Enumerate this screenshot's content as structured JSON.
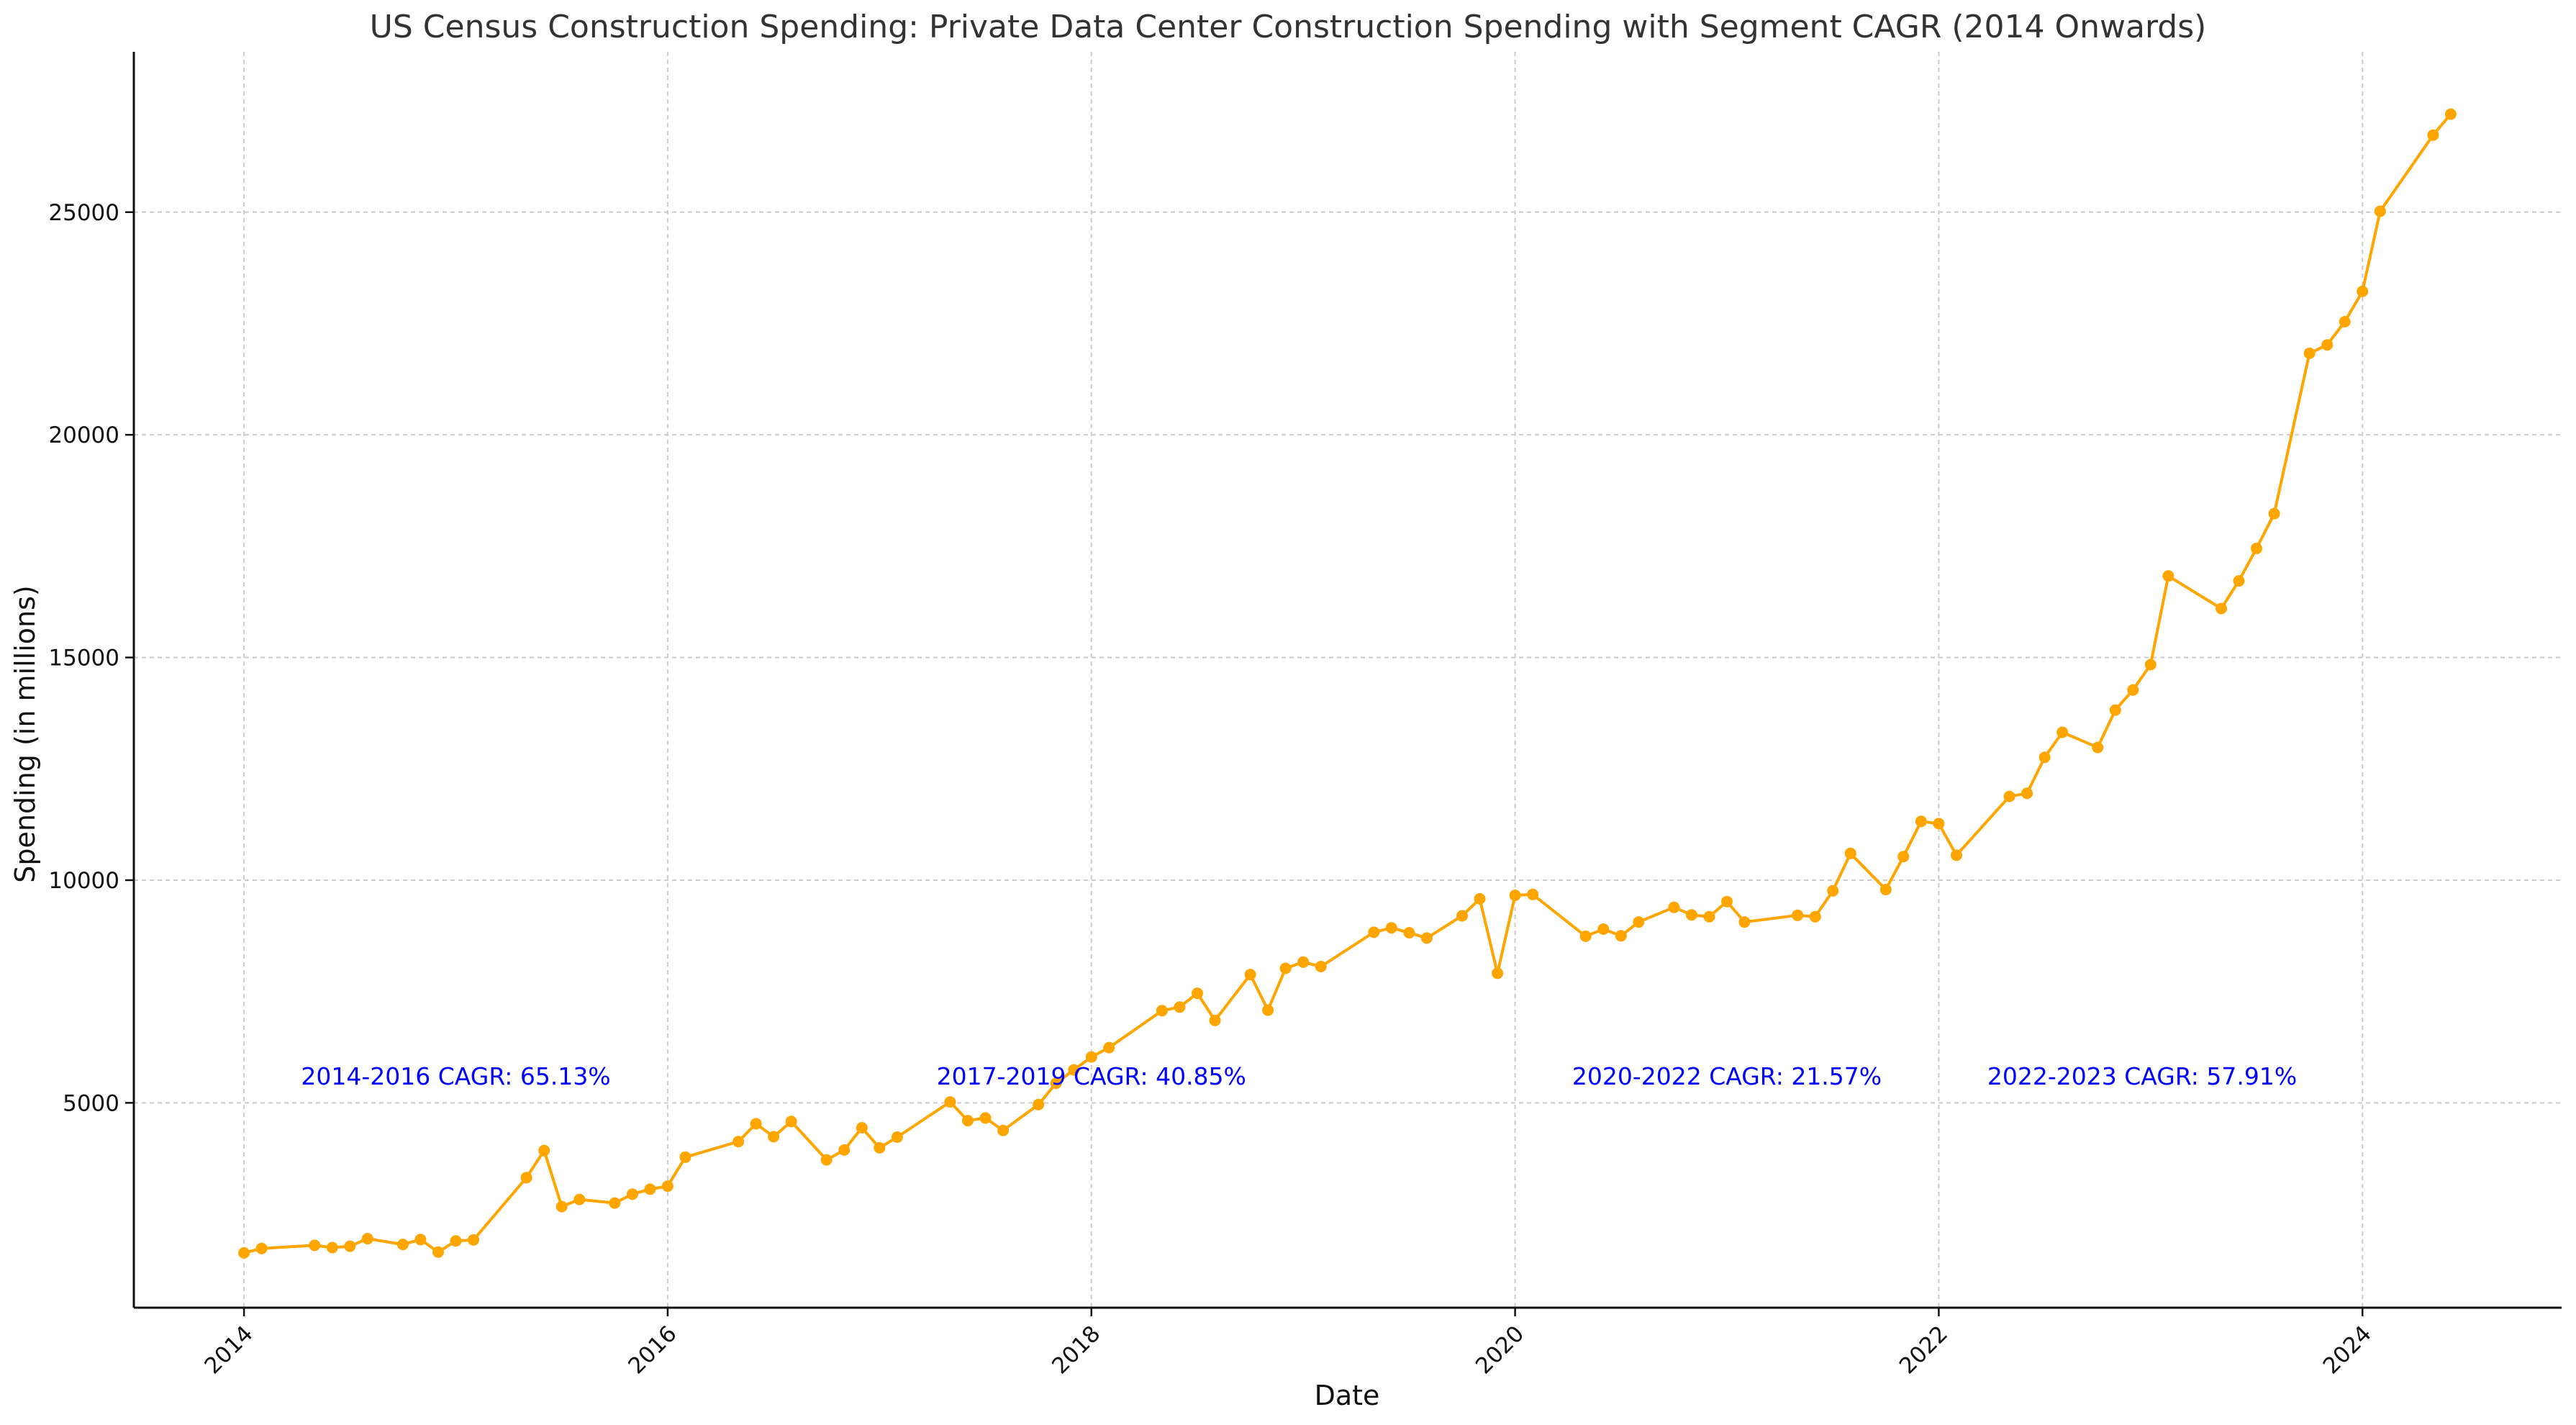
{
  "chart_data": {
    "type": "line",
    "title": "US Census Construction Spending: Private Data Center Construction Spending with Segment CAGR (2014 Onwards)",
    "xlabel": "Date",
    "ylabel": "Spending (in millions)",
    "x_ticks": [
      "2014",
      "2016",
      "2018",
      "2020",
      "2022",
      "2024"
    ],
    "y_ticks": [
      "5000",
      "10000",
      "15000",
      "20000",
      "25000"
    ],
    "xlim": [
      2013.48,
      2024.94
    ],
    "ylim": [
      400,
      28600
    ],
    "grid": true,
    "line_color": "#ffa500",
    "annotation_color": "#0000ff",
    "annotations": [
      {
        "text": "2014-2016 CAGR: 65.13%",
        "x": 2015.0,
        "y": 5600
      },
      {
        "text": "2017-2019 CAGR: 40.85%",
        "x": 2018.0,
        "y": 5600
      },
      {
        "text": "2020-2022 CAGR: 21.57%",
        "x": 2021.0,
        "y": 5600
      },
      {
        "text": "2022-2023 CAGR: 57.91%",
        "x": 2022.96,
        "y": 5600
      }
    ],
    "series": [
      {
        "x": [
          "2014-01",
          "2014-02",
          "2014-05",
          "2014-06",
          "2014-07",
          "2014-08",
          "2014-10",
          "2014-11",
          "2014-12",
          "2015-01",
          "2015-02",
          "2015-05",
          "2015-06",
          "2015-07",
          "2015-08",
          "2015-10",
          "2015-11",
          "2015-12",
          "2016-01",
          "2016-02",
          "2016-05",
          "2016-06",
          "2016-07",
          "2016-08",
          "2016-10",
          "2016-11",
          "2016-12",
          "2017-01",
          "2017-02",
          "2017-05",
          "2017-06",
          "2017-07",
          "2017-08",
          "2017-10",
          "2017-11",
          "2017-12",
          "2018-01",
          "2018-02",
          "2018-05",
          "2018-06",
          "2018-07",
          "2018-08",
          "2018-10",
          "2018-11",
          "2018-12",
          "2019-01",
          "2019-02",
          "2019-05",
          "2019-06",
          "2019-07",
          "2019-08",
          "2019-10",
          "2019-11",
          "2019-12",
          "2020-01",
          "2020-02",
          "2020-05",
          "2020-06",
          "2020-07",
          "2020-08",
          "2020-10",
          "2020-11",
          "2020-12",
          "2021-01",
          "2021-02",
          "2021-05",
          "2021-06",
          "2021-07",
          "2021-08",
          "2021-10",
          "2021-11",
          "2021-12",
          "2022-01",
          "2022-02",
          "2022-05",
          "2022-06",
          "2022-07",
          "2022-08",
          "2022-10",
          "2022-11",
          "2022-12",
          "2023-01",
          "2023-02",
          "2023-05",
          "2023-06",
          "2023-07",
          "2023-08",
          "2023-10",
          "2023-11",
          "2023-12",
          "2024-01",
          "2024-02",
          "2024-05",
          "2024-06"
        ],
        "values": [
          1630,
          1730,
          1800,
          1750,
          1780,
          1950,
          1820,
          1930,
          1650,
          1900,
          1920,
          3320,
          3930,
          2670,
          2830,
          2750,
          2950,
          3060,
          3130,
          3780,
          4130,
          4530,
          4240,
          4580,
          3720,
          3940,
          4440,
          3990,
          4230,
          5020,
          4600,
          4660,
          4380,
          4960,
          5440,
          5740,
          6030,
          6240,
          7070,
          7150,
          7460,
          6850,
          7880,
          7080,
          8020,
          8160,
          8060,
          8830,
          8930,
          8820,
          8700,
          9200,
          9580,
          7910,
          9660,
          9680,
          8740,
          8900,
          8750,
          9060,
          9390,
          9220,
          9180,
          9520,
          9060,
          9210,
          9180,
          9760,
          10600,
          9790,
          10530,
          11320,
          11270,
          10560,
          11880,
          11950,
          12760,
          13320,
          12980,
          13820,
          14270,
          14840,
          16830,
          16100,
          16720,
          17450,
          18230,
          21830,
          22020,
          22540,
          23220,
          25020,
          26730,
          27200
        ]
      }
    ]
  }
}
